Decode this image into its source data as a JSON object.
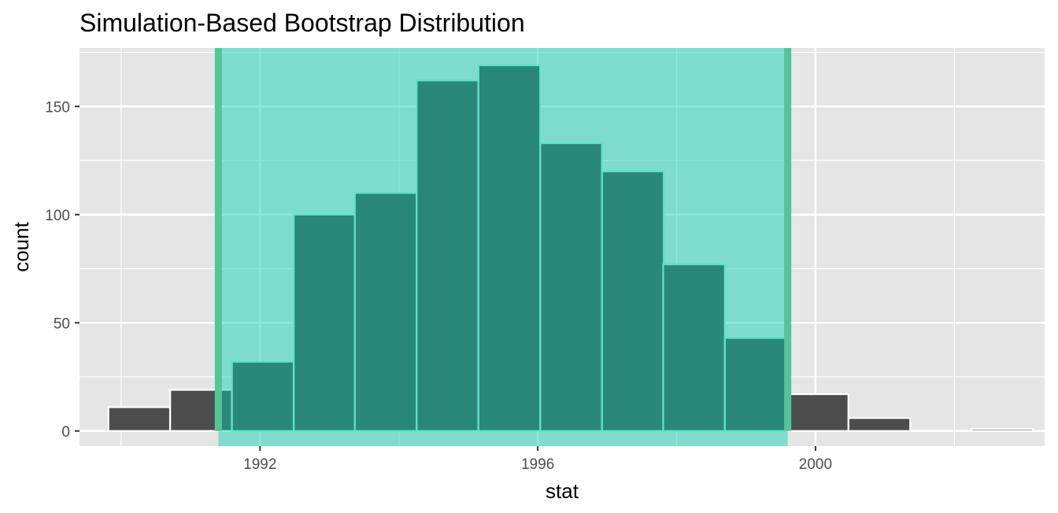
{
  "chart_data": {
    "type": "bar",
    "title": "Simulation-Based Bootstrap Distribution",
    "xlabel": "stat",
    "ylabel": "count",
    "xlim": [
      1989.4,
      2003.3
    ],
    "ylim": [
      -7,
      177
    ],
    "x_ticks": [
      1992,
      1996,
      2000
    ],
    "x_minor_ticks": [
      1990,
      1994,
      1998,
      2002
    ],
    "y_ticks": [
      0,
      50,
      100,
      150
    ],
    "y_minor_ticks": [
      25,
      75,
      125,
      175
    ],
    "bin_width": 0.888,
    "bins": [
      {
        "center": 1990.26,
        "count": 11
      },
      {
        "center": 1991.15,
        "count": 19
      },
      {
        "center": 1992.04,
        "count": 32
      },
      {
        "center": 1992.93,
        "count": 100
      },
      {
        "center": 1993.81,
        "count": 110
      },
      {
        "center": 1994.7,
        "count": 162
      },
      {
        "center": 1995.59,
        "count": 169
      },
      {
        "center": 1996.48,
        "count": 133
      },
      {
        "center": 1997.37,
        "count": 120
      },
      {
        "center": 1998.25,
        "count": 77
      },
      {
        "center": 1999.14,
        "count": 43
      },
      {
        "center": 2000.03,
        "count": 17
      },
      {
        "center": 2000.92,
        "count": 6
      },
      {
        "center": 2001.81,
        "count": 0
      },
      {
        "center": 2002.69,
        "count": 1
      }
    ],
    "interval": {
      "lower": 1991.4,
      "upper": 1999.6
    },
    "colors": {
      "panel": "#e5e5e5",
      "grid": "#ffffff",
      "bar_fill": "#4d4d4d",
      "bar_outline": "#ffffff",
      "shade": "#00d1b2",
      "shade_opacity": 0.45,
      "interval_line": "#53c598",
      "bar_outline_in_interval": "#a6f2e2"
    },
    "grid": true,
    "legend": "none"
  }
}
